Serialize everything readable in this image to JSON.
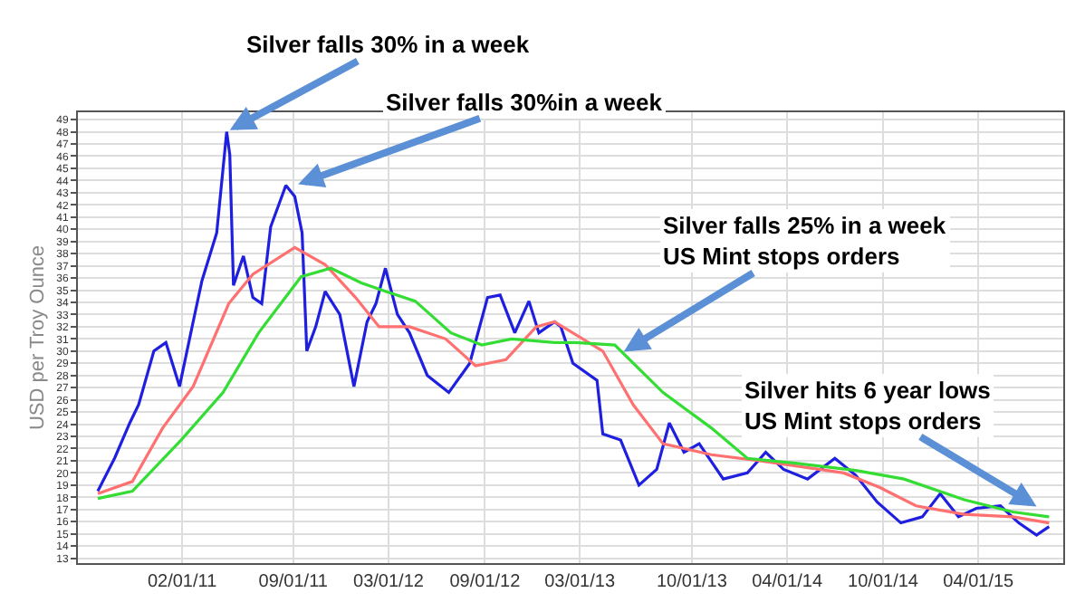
{
  "chart_data": {
    "type": "line",
    "ylabel": "USD per Troy Ounce",
    "xlim": [
      "2010-07-17",
      "2015-09-10"
    ],
    "ylim": [
      12.6,
      49.6
    ],
    "xticks": [
      {
        "value": "2011-02-01",
        "label": "02/01/11"
      },
      {
        "value": "2011-09-01",
        "label": "09/01/11"
      },
      {
        "value": "2012-03-01",
        "label": "03/01/12"
      },
      {
        "value": "2012-09-01",
        "label": "09/01/12"
      },
      {
        "value": "2013-03-01",
        "label": "03/01/13"
      },
      {
        "value": "2013-10-01",
        "label": "10/01/13"
      },
      {
        "value": "2014-04-01",
        "label": "04/01/14"
      },
      {
        "value": "2014-10-01",
        "label": "10/01/14"
      },
      {
        "value": "2015-04-01",
        "label": "04/01/15"
      }
    ],
    "yticks": [
      13,
      14,
      15,
      16,
      17,
      18,
      19,
      20,
      21,
      22,
      23,
      24,
      25,
      26,
      27,
      28,
      29,
      30,
      31,
      32,
      33,
      34,
      35,
      36,
      37,
      38,
      39,
      40,
      41,
      42,
      43,
      44,
      45,
      46,
      47,
      48,
      49
    ],
    "grid": true,
    "series": [
      {
        "color": "#1f1fe0",
        "x": [
          "2010-08-24",
          "2010-09-25",
          "2010-10-24",
          "2010-11-10",
          "2010-12-09",
          "2011-01-01",
          "2011-01-27",
          "2011-02-22",
          "2011-03-11",
          "2011-04-08",
          "2011-04-27",
          "2011-05-03",
          "2011-05-10",
          "2011-05-29",
          "2011-06-16",
          "2011-07-03",
          "2011-07-20",
          "2011-08-18",
          "2011-09-04",
          "2011-09-18",
          "2011-09-27",
          "2011-10-14",
          "2011-11-01",
          "2011-11-29",
          "2011-12-26",
          "2012-01-20",
          "2012-02-06",
          "2012-02-24",
          "2012-03-18",
          "2012-04-10",
          "2012-05-14",
          "2012-06-24",
          "2012-08-03",
          "2012-09-06",
          "2012-09-30",
          "2012-10-28",
          "2012-11-24",
          "2012-12-13",
          "2013-01-12",
          "2013-01-24",
          "2013-02-16",
          "2013-04-03",
          "2013-04-14",
          "2013-05-18",
          "2013-06-22",
          "2013-07-26",
          "2013-08-19",
          "2013-09-16",
          "2013-10-15",
          "2013-11-30",
          "2014-01-15",
          "2014-02-19",
          "2014-03-25",
          "2014-05-10",
          "2014-07-01",
          "2014-08-10",
          "2014-09-20",
          "2014-11-04",
          "2014-12-15",
          "2015-01-18",
          "2015-02-22",
          "2015-03-28",
          "2015-05-13",
          "2015-06-17",
          "2015-07-21",
          "2015-08-14"
        ],
        "values": [
          18.5,
          21.2,
          24.1,
          25.6,
          30.0,
          30.7,
          27.1,
          32.4,
          35.8,
          39.7,
          48.0,
          46.1,
          35.4,
          37.8,
          34.4,
          33.9,
          40.2,
          43.6,
          42.7,
          39.7,
          30.0,
          32.0,
          34.9,
          33.0,
          27.1,
          32.4,
          33.9,
          36.8,
          33.0,
          31.5,
          28.0,
          26.6,
          29.0,
          34.4,
          34.6,
          31.5,
          34.1,
          31.5,
          32.4,
          32.0,
          29.0,
          27.6,
          23.2,
          22.7,
          19.0,
          20.3,
          24.1,
          21.7,
          22.4,
          19.5,
          20.0,
          21.7,
          20.3,
          19.5,
          21.2,
          19.8,
          17.6,
          15.9,
          16.4,
          18.3,
          16.4,
          17.1,
          17.3,
          15.9,
          14.9,
          15.6
        ]
      },
      {
        "color": "#ff7070",
        "x": [
          "2010-08-24",
          "2010-10-29",
          "2010-12-26",
          "2011-02-22",
          "2011-05-01",
          "2011-06-16",
          "2011-09-04",
          "2011-11-01",
          "2011-12-29",
          "2012-02-12",
          "2012-04-10",
          "2012-06-18",
          "2012-08-14",
          "2012-10-11",
          "2012-12-08",
          "2013-01-12",
          "2013-04-14",
          "2013-06-11",
          "2013-08-07",
          "2013-11-07",
          "2014-02-07",
          "2014-04-29",
          "2014-07-18",
          "2014-09-25",
          "2014-12-03",
          "2015-03-05",
          "2015-06-06",
          "2015-08-14"
        ],
        "values": [
          18.3,
          19.3,
          23.7,
          27.1,
          33.9,
          36.3,
          38.5,
          37.1,
          34.4,
          32.0,
          32.0,
          31.0,
          28.8,
          29.3,
          32.0,
          32.4,
          30.0,
          25.6,
          22.4,
          21.5,
          21.0,
          20.5,
          20.0,
          18.8,
          17.3,
          16.6,
          16.4,
          15.9
        ]
      },
      {
        "color": "#33dd33",
        "x": [
          "2010-08-24",
          "2010-10-29",
          "2011-01-30",
          "2011-04-20",
          "2011-06-27",
          "2011-09-16",
          "2011-11-12",
          "2012-01-09",
          "2012-02-24",
          "2012-04-21",
          "2012-06-28",
          "2012-08-26",
          "2012-10-22",
          "2013-01-12",
          "2013-02-21",
          "2013-05-07",
          "2013-08-07",
          "2013-11-07",
          "2014-01-15",
          "2014-04-17",
          "2014-08-10",
          "2014-11-10",
          "2015-03-05",
          "2015-06-06",
          "2015-08-14"
        ],
        "values": [
          17.9,
          18.5,
          22.7,
          26.6,
          31.5,
          36.1,
          36.8,
          35.6,
          34.9,
          34.1,
          31.5,
          30.5,
          31.0,
          30.7,
          30.7,
          30.5,
          26.6,
          23.7,
          21.2,
          20.8,
          20.2,
          19.5,
          17.8,
          16.8,
          16.4
        ]
      }
    ],
    "annotations": [
      {
        "text": "Silver falls 30% in a week",
        "x": "2011-04-27",
        "y": 48.0
      },
      {
        "text": "Silver falls 30%in a week",
        "x": "2011-09-04",
        "y": 43.6
      },
      {
        "text": "Silver falls 25% in a week\nUS Mint stops orders",
        "x": "2013-05-18",
        "y": 29.8
      },
      {
        "text": "Silver hits 6 year lows\nUS Mint stops orders",
        "x": "2015-07-27",
        "y": 17.1
      }
    ]
  }
}
